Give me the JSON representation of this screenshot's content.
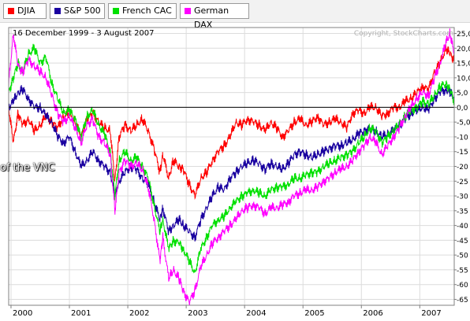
{
  "legend": [
    {
      "label": "DJIA",
      "color": "#ff0000"
    },
    {
      "label": "S&P 500",
      "color": "#1a00a0"
    },
    {
      "label": "French CAC",
      "color": "#00e000"
    },
    {
      "label": "German DAX",
      "color": "#ff00ff"
    }
  ],
  "overlay_text": "of the VNC",
  "chart_data": {
    "type": "line",
    "title": "16 December 1999 - 3 August 2007",
    "watermark": "Copyright, StockCharts.com",
    "y_unit": "%",
    "ylim": [
      -67,
      27
    ],
    "yticks": [
      25,
      20,
      15,
      10,
      5,
      0,
      -5,
      -10,
      -15,
      -20,
      -25,
      -30,
      -35,
      -40,
      -45,
      -50,
      -55,
      -60,
      -65
    ],
    "ytick_labels": [
      "25,0",
      "20,0",
      "15,0",
      "10,0",
      "5,0",
      "0,0",
      "-5,0",
      "-10",
      "-15",
      "-20",
      "-25",
      "-30",
      "-35",
      "-40",
      "-45",
      "-50",
      "-55",
      "-60",
      "-65"
    ],
    "xlim": [
      1999.96,
      2007.59
    ],
    "xticks": [
      2000,
      2001,
      2002,
      2003,
      2004,
      2005,
      2006,
      2007
    ],
    "xtick_labels": [
      "2000",
      "2001",
      "2002",
      "2003",
      "2004",
      "2005",
      "2006",
      "2007"
    ],
    "baseline": 0,
    "grid": true,
    "series": [
      {
        "name": "DJIA",
        "color": "#ff0000",
        "x": [
          1999.96,
          2000.04,
          2000.12,
          2000.2,
          2000.3,
          2000.4,
          2000.5,
          2000.6,
          2000.7,
          2000.8,
          2000.9,
          2001.0,
          2001.1,
          2001.2,
          2001.3,
          2001.4,
          2001.5,
          2001.6,
          2001.7,
          2001.78,
          2001.85,
          2001.95,
          2002.05,
          2002.15,
          2002.25,
          2002.35,
          2002.45,
          2002.55,
          2002.6,
          2002.7,
          2002.78,
          2002.88,
          2002.95,
          2003.05,
          2003.15,
          2003.25,
          2003.35,
          2003.45,
          2003.55,
          2003.65,
          2003.75,
          2003.85,
          2003.95,
          2004.05,
          2004.15,
          2004.25,
          2004.35,
          2004.45,
          2004.55,
          2004.65,
          2004.75,
          2004.85,
          2004.95,
          2005.05,
          2005.15,
          2005.25,
          2005.35,
          2005.45,
          2005.55,
          2005.65,
          2005.75,
          2005.85,
          2005.95,
          2006.05,
          2006.15,
          2006.25,
          2006.35,
          2006.45,
          2006.55,
          2006.65,
          2006.75,
          2006.85,
          2006.95,
          2007.05,
          2007.15,
          2007.25,
          2007.35,
          2007.45,
          2007.52,
          2007.59
        ],
        "y": [
          0,
          -12,
          -2,
          -6,
          -4,
          -8,
          -6,
          -3,
          -5,
          -7,
          -3,
          -2,
          -5,
          -10,
          -4,
          -2,
          -5,
          -7,
          -8,
          -25,
          -10,
          -6,
          -8,
          -6,
          -4,
          -8,
          -14,
          -22,
          -16,
          -24,
          -18,
          -20,
          -21,
          -26,
          -30,
          -24,
          -22,
          -18,
          -15,
          -13,
          -10,
          -5,
          -6,
          -4,
          -5,
          -6,
          -8,
          -5,
          -7,
          -10,
          -8,
          -5,
          -4,
          -6,
          -5,
          -3,
          -6,
          -5,
          -4,
          -5,
          -7,
          -2,
          -1,
          -2,
          0,
          0,
          -3,
          -2,
          0,
          0,
          2,
          3,
          5,
          7,
          6,
          12,
          15,
          20,
          18,
          16
        ]
      },
      {
        "name": "S&P 500",
        "color": "#1a00a0",
        "x": [
          1999.96,
          2000.04,
          2000.12,
          2000.2,
          2000.3,
          2000.4,
          2000.5,
          2000.6,
          2000.7,
          2000.8,
          2000.9,
          2001.0,
          2001.1,
          2001.2,
          2001.3,
          2001.4,
          2001.5,
          2001.6,
          2001.7,
          2001.78,
          2001.85,
          2001.95,
          2002.05,
          2002.15,
          2002.25,
          2002.35,
          2002.45,
          2002.55,
          2002.6,
          2002.7,
          2002.78,
          2002.88,
          2002.95,
          2003.05,
          2003.15,
          2003.25,
          2003.35,
          2003.45,
          2003.55,
          2003.65,
          2003.75,
          2003.85,
          2003.95,
          2004.05,
          2004.15,
          2004.25,
          2004.35,
          2004.45,
          2004.55,
          2004.65,
          2004.75,
          2004.85,
          2004.95,
          2005.05,
          2005.15,
          2005.25,
          2005.35,
          2005.45,
          2005.55,
          2005.65,
          2005.75,
          2005.85,
          2005.95,
          2006.05,
          2006.15,
          2006.25,
          2006.35,
          2006.45,
          2006.55,
          2006.65,
          2006.75,
          2006.85,
          2006.95,
          2007.05,
          2007.15,
          2007.25,
          2007.35,
          2007.45,
          2007.52,
          2007.59
        ],
        "y": [
          0,
          2,
          5,
          6,
          3,
          0,
          0,
          -3,
          -5,
          -10,
          -12,
          -10,
          -15,
          -20,
          -18,
          -15,
          -18,
          -20,
          -22,
          -30,
          -25,
          -22,
          -20,
          -21,
          -24,
          -26,
          -32,
          -38,
          -34,
          -42,
          -40,
          -38,
          -40,
          -42,
          -44,
          -38,
          -34,
          -30,
          -27,
          -28,
          -24,
          -22,
          -20,
          -19,
          -18,
          -19,
          -21,
          -19,
          -20,
          -21,
          -19,
          -16,
          -15,
          -16,
          -17,
          -16,
          -15,
          -14,
          -13,
          -13,
          -12,
          -11,
          -9,
          -8,
          -7,
          -8,
          -10,
          -9,
          -8,
          -6,
          -4,
          -2,
          -1,
          0,
          -1,
          3,
          5,
          6,
          5,
          3
        ]
      },
      {
        "name": "French CAC",
        "color": "#00e000",
        "x": [
          1999.96,
          2000.04,
          2000.12,
          2000.2,
          2000.3,
          2000.4,
          2000.5,
          2000.6,
          2000.7,
          2000.8,
          2000.9,
          2001.0,
          2001.1,
          2001.2,
          2001.3,
          2001.4,
          2001.5,
          2001.6,
          2001.7,
          2001.78,
          2001.85,
          2001.95,
          2002.05,
          2002.15,
          2002.25,
          2002.35,
          2002.45,
          2002.55,
          2002.6,
          2002.7,
          2002.78,
          2002.88,
          2002.95,
          2003.05,
          2003.15,
          2003.25,
          2003.35,
          2003.45,
          2003.55,
          2003.65,
          2003.75,
          2003.85,
          2003.95,
          2004.05,
          2004.15,
          2004.25,
          2004.35,
          2004.45,
          2004.55,
          2004.65,
          2004.75,
          2004.85,
          2004.95,
          2005.05,
          2005.15,
          2005.25,
          2005.35,
          2005.45,
          2005.55,
          2005.65,
          2005.75,
          2005.85,
          2005.95,
          2006.05,
          2006.15,
          2006.25,
          2006.35,
          2006.45,
          2006.55,
          2006.65,
          2006.75,
          2006.85,
          2006.95,
          2007.05,
          2007.15,
          2007.25,
          2007.35,
          2007.45,
          2007.52,
          2007.59
        ],
        "y": [
          5,
          10,
          15,
          12,
          18,
          20,
          15,
          17,
          8,
          3,
          -2,
          -1,
          -4,
          -10,
          -3,
          -1,
          -6,
          -9,
          -15,
          -30,
          -18,
          -15,
          -18,
          -17,
          -20,
          -24,
          -33,
          -42,
          -38,
          -48,
          -45,
          -46,
          -48,
          -52,
          -56,
          -48,
          -44,
          -40,
          -38,
          -37,
          -34,
          -32,
          -30,
          -29,
          -28,
          -29,
          -30,
          -28,
          -27,
          -27,
          -26,
          -24,
          -24,
          -23,
          -22,
          -22,
          -20,
          -19,
          -18,
          -17,
          -16,
          -15,
          -12,
          -10,
          -7,
          -8,
          -12,
          -10,
          -8,
          -6,
          -3,
          -1,
          0,
          2,
          1,
          4,
          7,
          8,
          6,
          2
        ]
      },
      {
        "name": "German DAX",
        "color": "#ff00ff",
        "x": [
          1999.96,
          2000.04,
          2000.12,
          2000.2,
          2000.3,
          2000.4,
          2000.5,
          2000.6,
          2000.7,
          2000.8,
          2000.9,
          2001.0,
          2001.1,
          2001.2,
          2001.3,
          2001.4,
          2001.5,
          2001.6,
          2001.7,
          2001.78,
          2001.85,
          2001.95,
          2002.05,
          2002.15,
          2002.25,
          2002.35,
          2002.45,
          2002.55,
          2002.6,
          2002.7,
          2002.78,
          2002.88,
          2002.95,
          2003.05,
          2003.15,
          2003.25,
          2003.35,
          2003.45,
          2003.55,
          2003.65,
          2003.75,
          2003.85,
          2003.95,
          2004.05,
          2004.15,
          2004.25,
          2004.35,
          2004.45,
          2004.55,
          2004.65,
          2004.75,
          2004.85,
          2004.95,
          2005.05,
          2005.15,
          2005.25,
          2005.35,
          2005.45,
          2005.55,
          2005.65,
          2005.75,
          2005.85,
          2005.95,
          2006.05,
          2006.15,
          2006.25,
          2006.35,
          2006.45,
          2006.55,
          2006.65,
          2006.75,
          2006.85,
          2006.95,
          2007.05,
          2007.15,
          2007.25,
          2007.35,
          2007.45,
          2007.52,
          2007.59
        ],
        "y": [
          8,
          25,
          14,
          12,
          16,
          14,
          12,
          10,
          4,
          -2,
          -5,
          -3,
          -7,
          -12,
          -6,
          -4,
          -10,
          -12,
          -16,
          -35,
          -22,
          -18,
          -20,
          -19,
          -21,
          -27,
          -38,
          -52,
          -44,
          -58,
          -55,
          -58,
          -62,
          -66,
          -62,
          -54,
          -50,
          -46,
          -44,
          -42,
          -40,
          -38,
          -35,
          -34,
          -33,
          -34,
          -36,
          -34,
          -34,
          -33,
          -32,
          -30,
          -29,
          -28,
          -28,
          -27,
          -25,
          -24,
          -22,
          -21,
          -20,
          -18,
          -15,
          -13,
          -10,
          -12,
          -16,
          -13,
          -10,
          -7,
          -3,
          0,
          3,
          5,
          4,
          10,
          15,
          22,
          25,
          18
        ]
      }
    ]
  }
}
